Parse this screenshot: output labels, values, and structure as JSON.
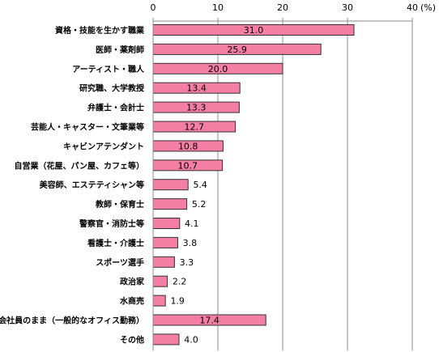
{
  "chart_data": {
    "type": "bar",
    "orientation": "horizontal",
    "x_ticks": [
      "0",
      "10",
      "20",
      "30",
      "40"
    ],
    "unit_label": "(%)",
    "xlim": [
      0,
      40
    ],
    "grid": true,
    "bar_color": "#F47FA2",
    "bar_border_color": "#333333",
    "categories": [
      "資格・技能を生かす職業",
      "医師・薬剤師",
      "アーティスト・職人",
      "研究職、大学教授",
      "弁護士・会計士",
      "芸能人・キャスター・文筆業等",
      "キャビンアテンダント",
      "自営業（花屋、パン屋、カフェ等）",
      "美容師、エステティシャン等",
      "教師・保育士",
      "警察官・消防士等",
      "看護士・介護士",
      "スポーツ選手",
      "政治家",
      "水商売",
      "会社員のまま（一般的なオフィス勤務）",
      "その他"
    ],
    "values": [
      31.0,
      25.9,
      20.0,
      13.4,
      13.3,
      12.7,
      10.8,
      10.7,
      5.4,
      5.2,
      4.1,
      3.8,
      3.3,
      2.2,
      1.9,
      17.4,
      4.0
    ],
    "value_labels": [
      "31.0",
      "25.9",
      "20.0",
      "13.4",
      "13.3",
      "12.7",
      "10.8",
      "10.7",
      "5.4",
      "5.2",
      "4.1",
      "3.8",
      "3.3",
      "2.2",
      "1.9",
      "17.4",
      "4.0"
    ]
  }
}
